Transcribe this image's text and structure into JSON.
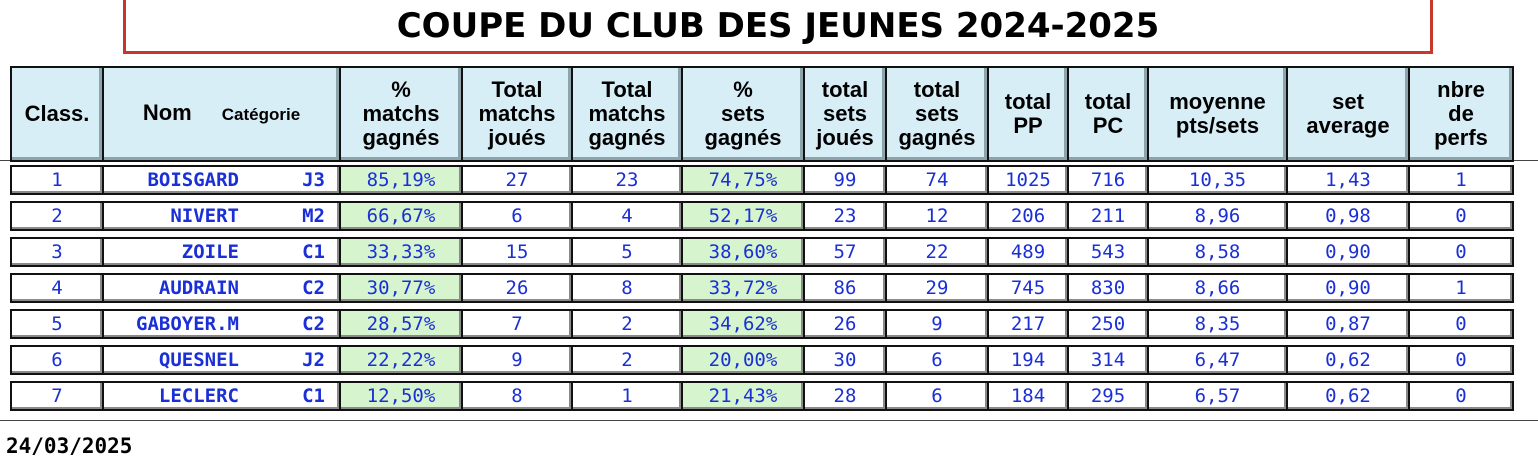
{
  "title": "COUPE DU CLUB DES JEUNES 2024-2025",
  "headers": {
    "classement": "Class.",
    "nom": "Nom",
    "categorie": "Catégorie",
    "pct_matchs": [
      "%",
      "matchs",
      "gagnés"
    ],
    "total_matchs_joues": [
      "Total",
      "matchs",
      "joués"
    ],
    "total_matchs_gagnes": [
      "Total",
      "matchs",
      "gagnés"
    ],
    "pct_sets": [
      "%",
      "sets",
      "gagnés"
    ],
    "total_sets_joues": [
      "total",
      "sets",
      "joués"
    ],
    "total_sets_gagnes": [
      "total",
      "sets",
      "gagnés"
    ],
    "total_pp": [
      "total",
      "PP"
    ],
    "total_pc": [
      "total",
      "PC"
    ],
    "moyenne": [
      "moyenne",
      "pts/sets"
    ],
    "set_average": [
      "set",
      "average"
    ],
    "nbre_perfs": [
      "nbre",
      "de",
      "perfs"
    ]
  },
  "rows": [
    {
      "rank": "1",
      "name": "BOISGARD",
      "cat": "J3",
      "pct_matchs": "85,19%",
      "mj": "27",
      "mg": "23",
      "pct_sets": "74,75%",
      "sj": "99",
      "sg": "74",
      "pp": "1025",
      "pc": "716",
      "moy": "10,35",
      "avg": "1,43",
      "perfs": "1"
    },
    {
      "rank": "2",
      "name": "NIVERT",
      "cat": "M2",
      "pct_matchs": "66,67%",
      "mj": "6",
      "mg": "4",
      "pct_sets": "52,17%",
      "sj": "23",
      "sg": "12",
      "pp": "206",
      "pc": "211",
      "moy": "8,96",
      "avg": "0,98",
      "perfs": "0"
    },
    {
      "rank": "3",
      "name": "ZOILE",
      "cat": "C1",
      "pct_matchs": "33,33%",
      "mj": "15",
      "mg": "5",
      "pct_sets": "38,60%",
      "sj": "57",
      "sg": "22",
      "pp": "489",
      "pc": "543",
      "moy": "8,58",
      "avg": "0,90",
      "perfs": "0"
    },
    {
      "rank": "4",
      "name": "AUDRAIN",
      "cat": "C2",
      "pct_matchs": "30,77%",
      "mj": "26",
      "mg": "8",
      "pct_sets": "33,72%",
      "sj": "86",
      "sg": "29",
      "pp": "745",
      "pc": "830",
      "moy": "8,66",
      "avg": "0,90",
      "perfs": "1"
    },
    {
      "rank": "5",
      "name": "GABOYER.M",
      "cat": "C2",
      "pct_matchs": "28,57%",
      "mj": "7",
      "mg": "2",
      "pct_sets": "34,62%",
      "sj": "26",
      "sg": "9",
      "pp": "217",
      "pc": "250",
      "moy": "8,35",
      "avg": "0,87",
      "perfs": "0"
    },
    {
      "rank": "6",
      "name": "QUESNEL",
      "cat": "J2",
      "pct_matchs": "22,22%",
      "mj": "9",
      "mg": "2",
      "pct_sets": "20,00%",
      "sj": "30",
      "sg": "6",
      "pp": "194",
      "pc": "314",
      "moy": "6,47",
      "avg": "0,62",
      "perfs": "0"
    },
    {
      "rank": "7",
      "name": "LECLERC",
      "cat": "C1",
      "pct_matchs": "12,50%",
      "mj": "8",
      "mg": "1",
      "pct_sets": "21,43%",
      "sj": "28",
      "sg": "6",
      "pp": "184",
      "pc": "295",
      "moy": "6,57",
      "avg": "0,62",
      "perfs": "0"
    }
  ],
  "date": "24/03/2025",
  "colors": {
    "title_border": "#c8372b",
    "header_bg": "#d7eef7",
    "pct_bg": "#d6f5cf",
    "value_text": "#1a2fd6",
    "rank_text": "#d1261c"
  }
}
